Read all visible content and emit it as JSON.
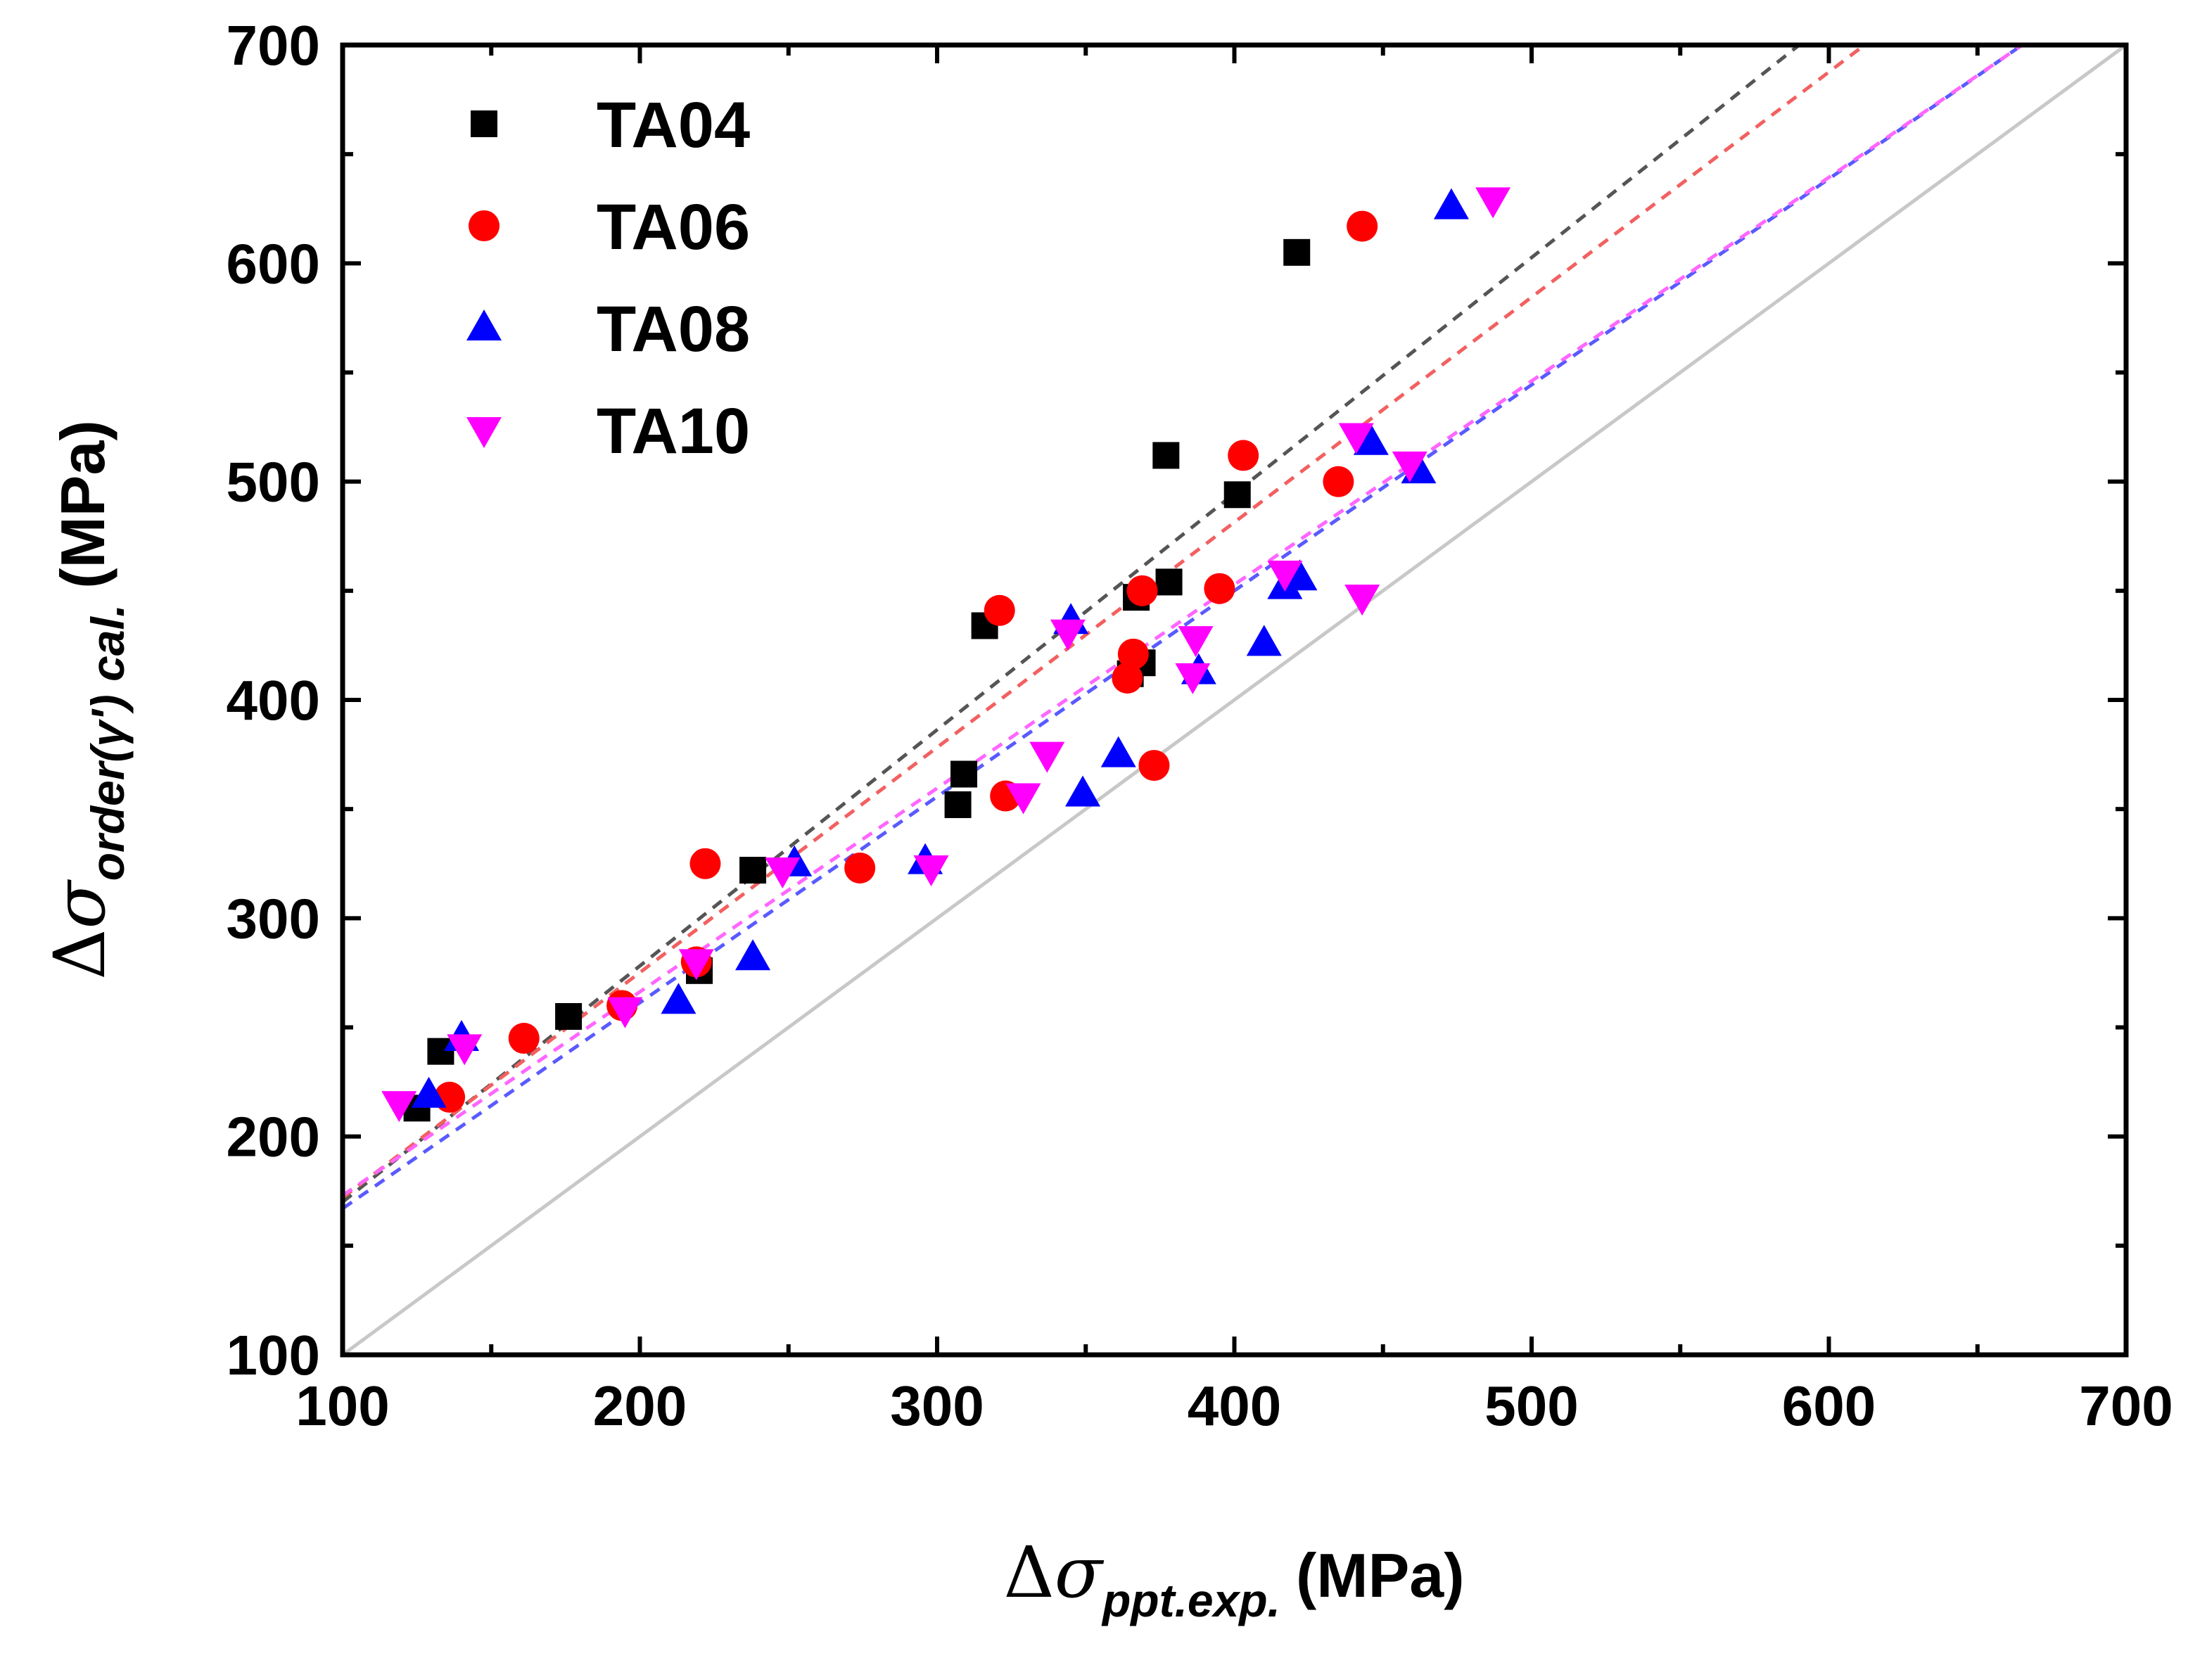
{
  "chart_data": {
    "type": "scatter",
    "title": "",
    "xlabel": {
      "delta": "Δ",
      "symbol": "σ",
      "subscript": "ppt.exp.",
      "unit": "(MPa)"
    },
    "ylabel": {
      "delta": "Δ",
      "symbol": "σ",
      "subscript": "order(γ') cal.",
      "unit": "(MPa)"
    },
    "xlim": [
      100,
      700
    ],
    "ylim": [
      100,
      700
    ],
    "x_ticks": [
      100,
      200,
      300,
      400,
      500,
      600,
      700
    ],
    "y_ticks": [
      100,
      200,
      300,
      400,
      500,
      600,
      700
    ],
    "x_tick_labels": [
      "100",
      "200",
      "300",
      "400",
      "500",
      "600",
      "700"
    ],
    "y_tick_labels": [
      "100",
      "200",
      "300",
      "400",
      "500",
      "600",
      "700"
    ],
    "grid": false,
    "legend_position": "top-left",
    "reference_line": {
      "name": "y = x",
      "color": "#c8c8c8",
      "from": [
        100,
        100
      ],
      "to": [
        700,
        700
      ]
    },
    "series": [
      {
        "name": "TA04",
        "marker": "square",
        "color": "#000000",
        "fit_line": {
          "color": "#555555",
          "from": [
            100,
            170
          ],
          "to": [
            590,
            700
          ]
        },
        "points": [
          [
            125,
            213
          ],
          [
            133,
            239
          ],
          [
            176,
            255
          ],
          [
            220,
            276
          ],
          [
            238,
            322
          ],
          [
            307,
            352
          ],
          [
            309,
            366
          ],
          [
            316,
            434
          ],
          [
            365,
            412
          ],
          [
            367,
            447
          ],
          [
            369,
            417
          ],
          [
            378,
            454
          ],
          [
            377,
            512
          ],
          [
            401,
            494
          ],
          [
            421,
            605
          ]
        ]
      },
      {
        "name": "TA06",
        "marker": "circle",
        "color": "#ff0000",
        "fit_line": {
          "color": "#f26060",
          "from": [
            100,
            172
          ],
          "to": [
            612,
            700
          ]
        },
        "points": [
          [
            136,
            218
          ],
          [
            161,
            245
          ],
          [
            194,
            260
          ],
          [
            219,
            280
          ],
          [
            222,
            325
          ],
          [
            274,
            323
          ],
          [
            321,
            441
          ],
          [
            323,
            356
          ],
          [
            364,
            410
          ],
          [
            366,
            421
          ],
          [
            369,
            450
          ],
          [
            373,
            370
          ],
          [
            395,
            451
          ],
          [
            403,
            512
          ],
          [
            435,
            500
          ],
          [
            443,
            617
          ]
        ]
      },
      {
        "name": "TA08",
        "marker": "triangle-up",
        "color": "#0000ff",
        "fit_line": {
          "color": "#5a5aff",
          "from": [
            100,
            167
          ],
          "to": [
            665,
            700
          ]
        },
        "points": [
          [
            129,
            219
          ],
          [
            140,
            245
          ],
          [
            213,
            262
          ],
          [
            238,
            282
          ],
          [
            252,
            325
          ],
          [
            296,
            326
          ],
          [
            345,
            436
          ],
          [
            349,
            357
          ],
          [
            361,
            375
          ],
          [
            388,
            413
          ],
          [
            410,
            426
          ],
          [
            417,
            452
          ],
          [
            422,
            456
          ],
          [
            446,
            518
          ],
          [
            462,
            505
          ],
          [
            473,
            626
          ]
        ]
      },
      {
        "name": "TA10",
        "marker": "triangle-down",
        "color": "#ff00ff",
        "fit_line": {
          "color": "#ff66ff",
          "from": [
            100,
            173
          ],
          "to": [
            665,
            700
          ]
        },
        "points": [
          [
            119,
            215
          ],
          [
            141,
            241
          ],
          [
            195,
            258
          ],
          [
            219,
            280
          ],
          [
            248,
            322
          ],
          [
            298,
            323
          ],
          [
            329,
            356
          ],
          [
            337,
            375
          ],
          [
            344,
            431
          ],
          [
            386,
            411
          ],
          [
            387,
            428
          ],
          [
            417,
            458
          ],
          [
            441,
            521
          ],
          [
            443,
            447
          ],
          [
            459,
            508
          ],
          [
            487,
            629
          ]
        ]
      }
    ]
  }
}
